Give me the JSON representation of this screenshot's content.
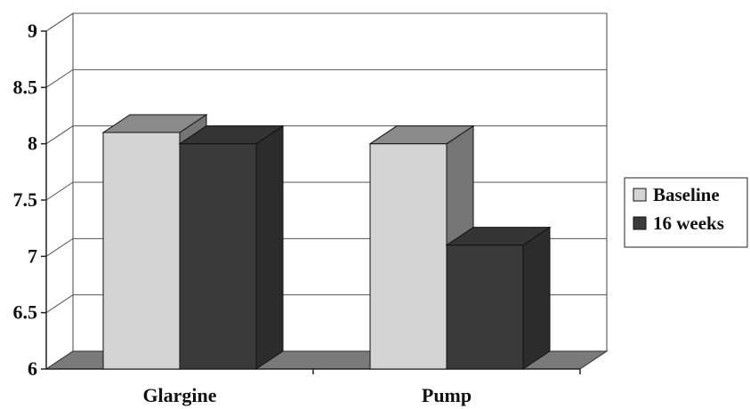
{
  "chart_data": {
    "type": "bar",
    "categories": [
      "Glargine",
      "Pump"
    ],
    "series": [
      {
        "name": "Baseline",
        "values": [
          8.1,
          8.0
        ],
        "color": "#d4d4d4"
      },
      {
        "name": "16 weeks",
        "values": [
          8.0,
          7.1
        ],
        "color": "#3a3a3a"
      }
    ],
    "ylim": [
      6,
      9
    ],
    "yticks": [
      "6",
      "6.5",
      "7",
      "7.5",
      "8",
      "8.5",
      "9"
    ],
    "grid": true,
    "legend_position": "right",
    "style": "3d"
  }
}
